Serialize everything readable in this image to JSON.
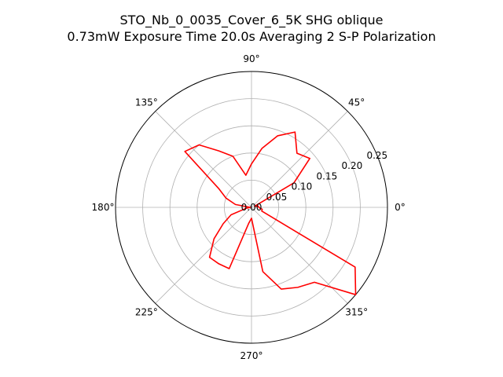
{
  "chart_data": {
    "type": "polar-line",
    "title_line1": "STO_Nb_0_0035_Cover_6_5K SHG oblique",
    "title_line2": "0.73mW Exposure Time 20.0s Averaging 2 S-P  Polarization",
    "theta_unit": "degrees",
    "r_lim": [
      0,
      0.25
    ],
    "radial_ticks": [
      {
        "value": 0.0,
        "label": "0.00"
      },
      {
        "value": 0.05,
        "label": "0.05"
      },
      {
        "value": 0.1,
        "label": "0.10"
      },
      {
        "value": 0.15,
        "label": "0.15"
      },
      {
        "value": 0.2,
        "label": "0.20"
      },
      {
        "value": 0.25,
        "label": "0.25"
      }
    ],
    "radial_label_angle_deg": 22.5,
    "angle_ticks": [
      {
        "deg": 0,
        "label": "0°"
      },
      {
        "deg": 45,
        "label": "45°"
      },
      {
        "deg": 90,
        "label": "90°"
      },
      {
        "deg": 135,
        "label": "135°"
      },
      {
        "deg": 180,
        "label": "180°"
      },
      {
        "deg": 225,
        "label": "225°"
      },
      {
        "deg": 270,
        "label": "270°"
      },
      {
        "deg": 315,
        "label": "315°"
      }
    ],
    "grid": true,
    "series": [
      {
        "color": "#ff0000",
        "theta_deg": [
          0,
          10,
          20,
          30,
          40,
          50,
          60,
          70,
          80,
          90,
          100,
          110,
          120,
          130,
          140,
          150,
          160,
          170,
          180,
          190,
          200,
          210,
          220,
          230,
          240,
          250,
          260,
          270,
          280,
          290,
          300,
          310,
          320,
          330,
          340,
          350,
          360
        ],
        "r": [
          0.013,
          0.013,
          0.006,
          0.09,
          0.14,
          0.13,
          0.16,
          0.14,
          0.11,
          0.08,
          0.06,
          0.1,
          0.12,
          0.15,
          0.16,
          0.07,
          0.05,
          0.03,
          0.002,
          0.01,
          0.04,
          0.06,
          0.09,
          0.12,
          0.12,
          0.12,
          0.03,
          0.02,
          0.12,
          0.16,
          0.17,
          0.18,
          0.25,
          0.22,
          0.02,
          0.02,
          0.013
        ]
      }
    ]
  }
}
